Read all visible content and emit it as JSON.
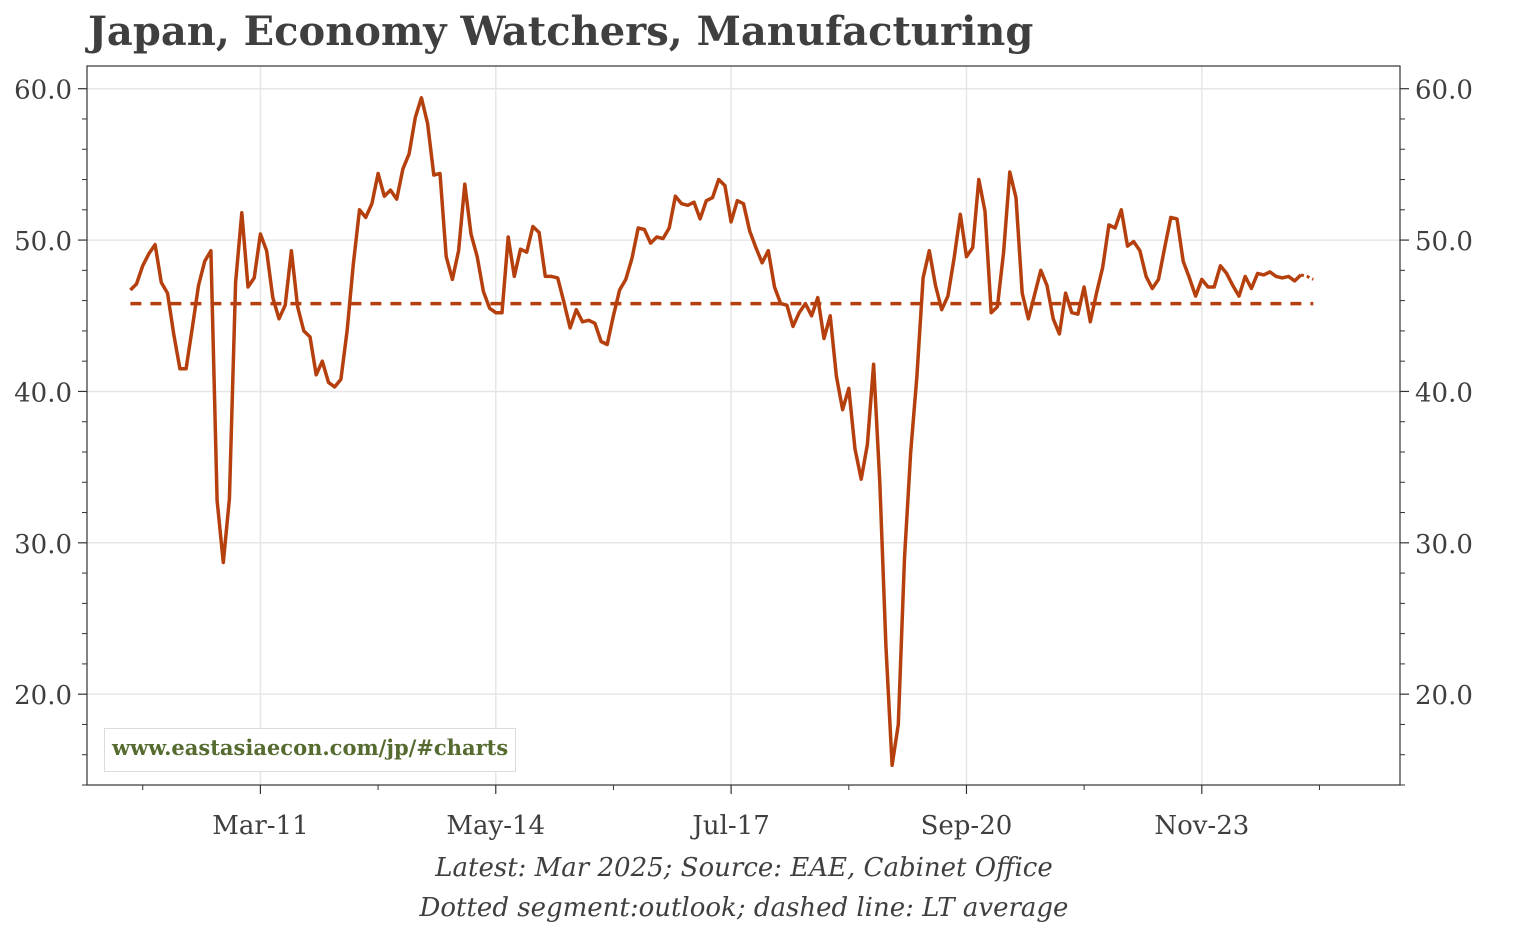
{
  "title": "Japan, Economy Watchers, Manufacturing",
  "footer": {
    "source": "Latest: Mar 2025; Source: EAE, Cabinet Office",
    "legend": "Dotted segment:outlook; dashed line: LT average"
  },
  "watermark": "www.eastasiaecon.com/jp/#charts",
  "colors": {
    "series": "#b5400e",
    "grid": "#e6e6e6",
    "axis": "#333333",
    "watermark": "#556b2f"
  },
  "chart_data": {
    "type": "line",
    "title": "Japan, Economy Watchers, Manufacturing",
    "xlabel": "",
    "ylabel": "",
    "ylim": [
      14,
      61.5
    ],
    "yticks": [
      20,
      30,
      40,
      50,
      60
    ],
    "ytick_labels": [
      "20.0",
      "30.0",
      "40.0",
      "50.0",
      "60.0"
    ],
    "xlim": [
      "2008-11",
      "2026-07"
    ],
    "xticks": [
      "2011-03",
      "2014-05",
      "2017-07",
      "2020-09",
      "2023-11"
    ],
    "xtick_labels": [
      "Mar-11",
      "May-14",
      "Jul-17",
      "Sep-20",
      "Nov-23"
    ],
    "grid": true,
    "right_axis": true,
    "series": [
      {
        "style": "solid",
        "points": [
          [
            "2009-06",
            46.7
          ],
          [
            "2009-07",
            47.1
          ],
          [
            "2009-08",
            48.3
          ],
          [
            "2009-09",
            49.1
          ],
          [
            "2009-10",
            49.7
          ],
          [
            "2009-11",
            47.2
          ],
          [
            "2009-12",
            46.5
          ],
          [
            "2010-01",
            43.8
          ],
          [
            "2010-02",
            41.5
          ],
          [
            "2010-03",
            41.5
          ],
          [
            "2010-04",
            44.2
          ],
          [
            "2010-05",
            47.0
          ],
          [
            "2010-06",
            48.6
          ],
          [
            "2010-07",
            49.3
          ],
          [
            "2010-08",
            32.8
          ],
          [
            "2010-09",
            28.7
          ],
          [
            "2010-10",
            32.9
          ],
          [
            "2010-11",
            47.2
          ],
          [
            "2010-12",
            51.8
          ],
          [
            "2011-01",
            46.9
          ],
          [
            "2011-02",
            47.5
          ],
          [
            "2011-03",
            50.4
          ],
          [
            "2011-04",
            49.3
          ],
          [
            "2011-05",
            46.2
          ],
          [
            "2011-06",
            44.8
          ],
          [
            "2011-07",
            45.7
          ],
          [
            "2011-08",
            49.3
          ],
          [
            "2011-09",
            45.6
          ],
          [
            "2011-10",
            44.0
          ],
          [
            "2011-11",
            43.6
          ],
          [
            "2011-12",
            41.1
          ],
          [
            "2012-01",
            42.0
          ],
          [
            "2012-02",
            40.6
          ],
          [
            "2012-03",
            40.3
          ],
          [
            "2012-04",
            40.8
          ],
          [
            "2012-05",
            44.0
          ],
          [
            "2012-06",
            48.4
          ],
          [
            "2012-07",
            52.0
          ],
          [
            "2012-08",
            51.5
          ],
          [
            "2012-09",
            52.4
          ],
          [
            "2012-10",
            54.4
          ],
          [
            "2012-11",
            52.9
          ],
          [
            "2012-12",
            53.3
          ],
          [
            "2013-01",
            52.7
          ],
          [
            "2013-02",
            54.7
          ],
          [
            "2013-03",
            55.7
          ],
          [
            "2013-04",
            58.1
          ],
          [
            "2013-05",
            59.4
          ],
          [
            "2013-06",
            57.7
          ],
          [
            "2013-07",
            54.3
          ],
          [
            "2013-08",
            54.4
          ],
          [
            "2013-09",
            48.9
          ],
          [
            "2013-10",
            47.4
          ],
          [
            "2013-11",
            49.3
          ],
          [
            "2013-12",
            53.7
          ],
          [
            "2014-01",
            50.4
          ],
          [
            "2014-02",
            48.9
          ],
          [
            "2014-03",
            46.6
          ],
          [
            "2014-04",
            45.5
          ],
          [
            "2014-05",
            45.2
          ],
          [
            "2014-06",
            45.2
          ],
          [
            "2014-07",
            50.2
          ],
          [
            "2014-08",
            47.6
          ],
          [
            "2014-09",
            49.4
          ],
          [
            "2014-10",
            49.2
          ],
          [
            "2014-11",
            50.9
          ],
          [
            "2014-12",
            50.5
          ],
          [
            "2015-01",
            47.6
          ],
          [
            "2015-02",
            47.6
          ],
          [
            "2015-03",
            47.5
          ],
          [
            "2015-04",
            45.9
          ],
          [
            "2015-05",
            44.2
          ],
          [
            "2015-06",
            45.4
          ],
          [
            "2015-07",
            44.6
          ],
          [
            "2015-08",
            44.7
          ],
          [
            "2015-09",
            44.5
          ],
          [
            "2015-10",
            43.3
          ],
          [
            "2015-11",
            43.1
          ],
          [
            "2015-12",
            45.0
          ],
          [
            "2016-01",
            46.7
          ],
          [
            "2016-02",
            47.4
          ],
          [
            "2016-03",
            48.8
          ],
          [
            "2016-04",
            50.8
          ],
          [
            "2016-05",
            50.7
          ],
          [
            "2016-06",
            49.8
          ],
          [
            "2016-07",
            50.2
          ],
          [
            "2016-08",
            50.1
          ],
          [
            "2016-09",
            50.8
          ],
          [
            "2016-10",
            52.9
          ],
          [
            "2016-11",
            52.4
          ],
          [
            "2016-12",
            52.3
          ],
          [
            "2017-01",
            52.5
          ],
          [
            "2017-02",
            51.4
          ],
          [
            "2017-03",
            52.6
          ],
          [
            "2017-04",
            52.8
          ],
          [
            "2017-05",
            54.0
          ],
          [
            "2017-06",
            53.6
          ],
          [
            "2017-07",
            51.2
          ],
          [
            "2017-08",
            52.6
          ],
          [
            "2017-09",
            52.4
          ],
          [
            "2017-10",
            50.6
          ],
          [
            "2017-11",
            49.5
          ],
          [
            "2017-12",
            48.5
          ],
          [
            "2018-01",
            49.3
          ],
          [
            "2018-02",
            46.9
          ],
          [
            "2018-03",
            45.8
          ],
          [
            "2018-04",
            45.7
          ],
          [
            "2018-05",
            44.3
          ],
          [
            "2018-06",
            45.2
          ],
          [
            "2018-07",
            45.8
          ],
          [
            "2018-08",
            45.0
          ],
          [
            "2018-09",
            46.2
          ],
          [
            "2018-10",
            43.5
          ],
          [
            "2018-11",
            45.0
          ],
          [
            "2018-12",
            41.0
          ],
          [
            "2019-01",
            38.8
          ],
          [
            "2019-02",
            40.2
          ],
          [
            "2019-03",
            36.2
          ],
          [
            "2019-04",
            34.2
          ],
          [
            "2019-05",
            36.5
          ],
          [
            "2019-06",
            41.8
          ],
          [
            "2019-07",
            34.0
          ],
          [
            "2019-08",
            23.2
          ],
          [
            "2019-09",
            15.3
          ],
          [
            "2019-10",
            18.0
          ],
          [
            "2019-11",
            29.0
          ],
          [
            "2019-12",
            36.0
          ],
          [
            "2020-01",
            41.0
          ],
          [
            "2020-02",
            47.5
          ],
          [
            "2020-03",
            49.3
          ],
          [
            "2020-04",
            47.0
          ],
          [
            "2020-05",
            45.4
          ],
          [
            "2020-06",
            46.3
          ],
          [
            "2020-07",
            48.8
          ],
          [
            "2020-08",
            51.7
          ],
          [
            "2020-09",
            48.9
          ],
          [
            "2020-10",
            49.5
          ],
          [
            "2020-11",
            54.0
          ],
          [
            "2020-12",
            51.9
          ],
          [
            "2021-01",
            45.2
          ],
          [
            "2021-02",
            45.6
          ],
          [
            "2021-03",
            49.2
          ],
          [
            "2021-04",
            54.5
          ],
          [
            "2021-05",
            52.8
          ],
          [
            "2021-06",
            46.5
          ],
          [
            "2021-07",
            44.8
          ],
          [
            "2021-08",
            46.4
          ],
          [
            "2021-09",
            48.0
          ],
          [
            "2021-10",
            47.0
          ],
          [
            "2021-11",
            44.8
          ],
          [
            "2021-12",
            43.8
          ],
          [
            "2022-01",
            46.5
          ],
          [
            "2022-02",
            45.2
          ],
          [
            "2022-03",
            45.1
          ],
          [
            "2022-04",
            46.9
          ],
          [
            "2022-05",
            44.6
          ],
          [
            "2022-06",
            46.5
          ],
          [
            "2022-07",
            48.2
          ],
          [
            "2022-08",
            51.0
          ],
          [
            "2022-09",
            50.8
          ],
          [
            "2022-10",
            52.0
          ],
          [
            "2022-11",
            49.6
          ],
          [
            "2022-12",
            49.9
          ],
          [
            "2023-01",
            49.3
          ],
          [
            "2023-02",
            47.6
          ],
          [
            "2023-03",
            46.8
          ],
          [
            "2023-04",
            47.4
          ],
          [
            "2023-05",
            49.5
          ],
          [
            "2023-06",
            51.5
          ],
          [
            "2023-07",
            51.4
          ],
          [
            "2023-08",
            48.6
          ],
          [
            "2023-09",
            47.5
          ],
          [
            "2023-10",
            46.3
          ],
          [
            "2023-11",
            47.4
          ],
          [
            "2023-12",
            46.9
          ],
          [
            "2024-01",
            46.9
          ],
          [
            "2024-02",
            48.3
          ],
          [
            "2024-03",
            47.8
          ],
          [
            "2024-04",
            47.0
          ],
          [
            "2024-05",
            46.3
          ],
          [
            "2024-06",
            47.6
          ],
          [
            "2024-07",
            46.8
          ],
          [
            "2024-08",
            47.8
          ],
          [
            "2024-09",
            47.7
          ],
          [
            "2024-10",
            47.9
          ],
          [
            "2024-11",
            47.6
          ],
          [
            "2024-12",
            47.5
          ],
          [
            "2025-01",
            47.6
          ],
          [
            "2025-02",
            47.3
          ],
          [
            "2025-03",
            47.7
          ]
        ]
      },
      {
        "style": "dotted",
        "points": [
          [
            "2025-03",
            47.7
          ],
          [
            "2025-04",
            47.6
          ],
          [
            "2025-05",
            47.4
          ]
        ]
      },
      {
        "style": "dashed",
        "points": [
          [
            "2009-06",
            45.8
          ],
          [
            "2025-05",
            45.8
          ]
        ]
      }
    ]
  }
}
